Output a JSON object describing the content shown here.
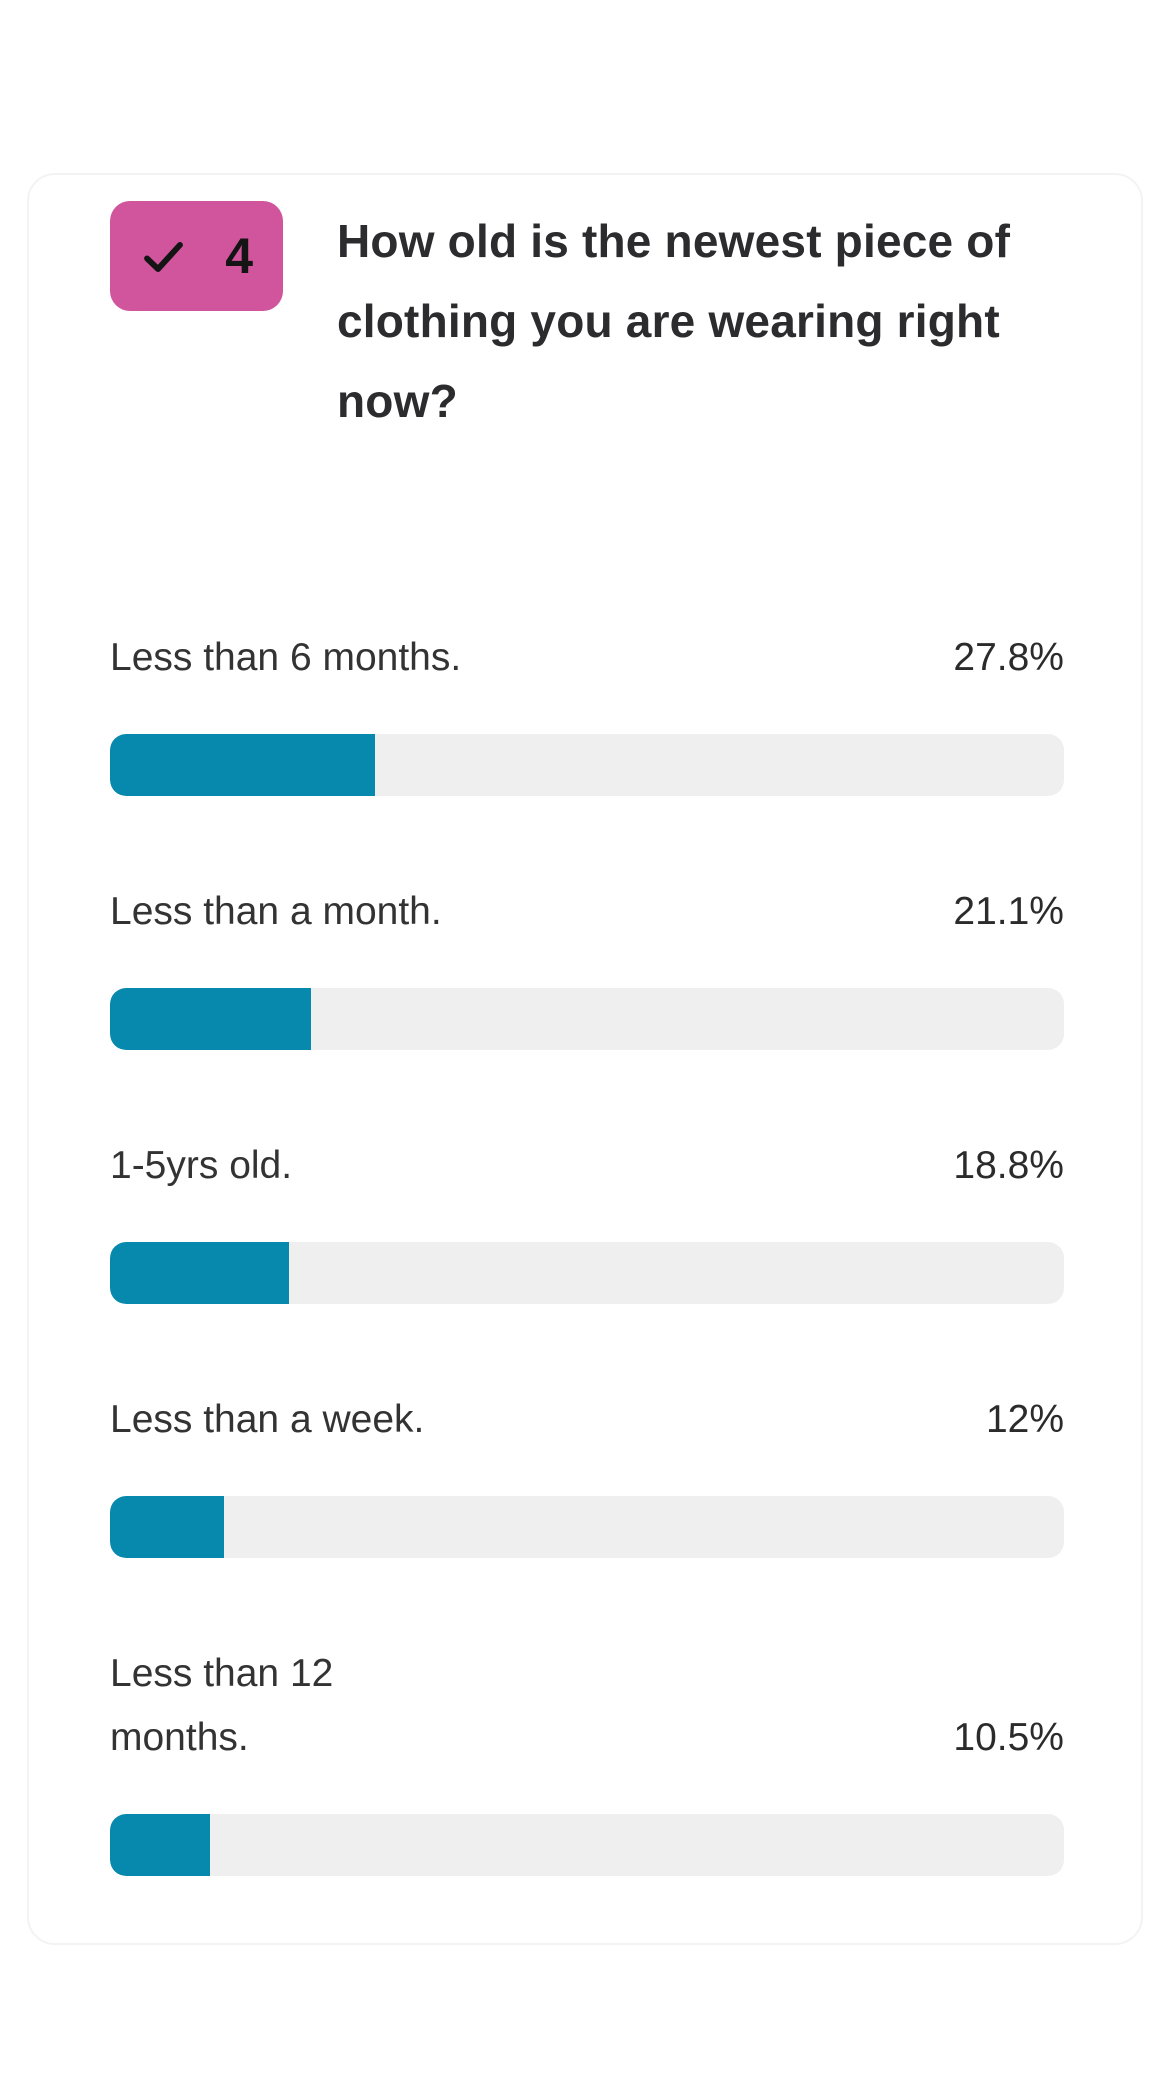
{
  "page": {
    "background": "#ffffff"
  },
  "card": {
    "background": "#ffffff",
    "border_color": "#f3f3f4"
  },
  "header": {
    "badge": {
      "number": "4",
      "icon": "checkmark",
      "background": "#d1559d",
      "icon_color": "#141414"
    },
    "question": "How old is the newest piece of clothing you are wearing right now?"
  },
  "results": [
    {
      "label": "Less than 6 months.",
      "percent_label": "27.8%",
      "percent": 27.8,
      "two_line": false
    },
    {
      "label": "Less than a month.",
      "percent_label": "21.1%",
      "percent": 21.1,
      "two_line": false
    },
    {
      "label": "1-5yrs old.",
      "percent_label": "18.8%",
      "percent": 18.8,
      "two_line": false
    },
    {
      "label": "Less than a week.",
      "percent_label": "12%",
      "percent": 12,
      "two_line": false
    },
    {
      "label": "Less than 12 months.",
      "percent_label": "10.5%",
      "percent": 10.5,
      "two_line": true
    }
  ],
  "colors": {
    "bar_fill": "#0789ae",
    "bar_track": "#efeff0",
    "question_text": "#2c2c2e",
    "label_text": "#333333",
    "badge_pink": "#d1559d"
  },
  "chart_data": {
    "type": "bar",
    "orientation": "horizontal",
    "title": "How old is the newest piece of clothing you are wearing right now?",
    "categories": [
      "Less than 6 months.",
      "Less than a month.",
      "1-5yrs old.",
      "Less than a week.",
      "Less than 12 months."
    ],
    "values": [
      27.8,
      21.1,
      18.8,
      12,
      10.5
    ],
    "value_labels": [
      "27.8%",
      "21.1%",
      "18.8%",
      "12%",
      "10.5%"
    ],
    "unit": "%",
    "xlim": [
      0,
      100
    ],
    "xlabel": "",
    "ylabel": "",
    "grid": false,
    "legend": false,
    "bar_color": "#0789ae",
    "track_color": "#efeff0"
  }
}
